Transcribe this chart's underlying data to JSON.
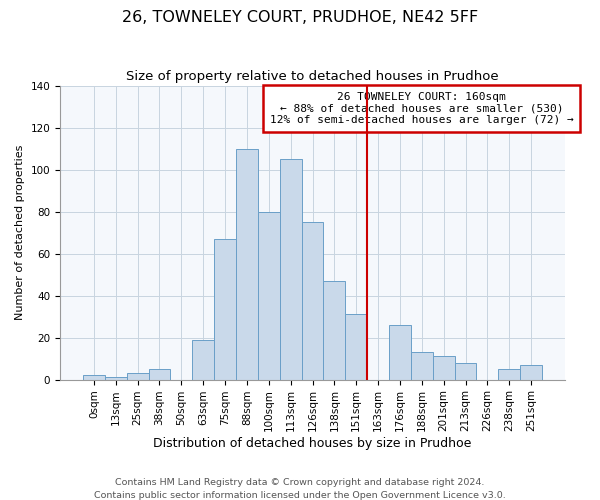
{
  "title": "26, TOWNELEY COURT, PRUDHOE, NE42 5FF",
  "subtitle": "Size of property relative to detached houses in Prudhoe",
  "xlabel": "Distribution of detached houses by size in Prudhoe",
  "ylabel": "Number of detached properties",
  "bar_labels": [
    "0sqm",
    "13sqm",
    "25sqm",
    "38sqm",
    "50sqm",
    "63sqm",
    "75sqm",
    "88sqm",
    "100sqm",
    "113sqm",
    "126sqm",
    "138sqm",
    "151sqm",
    "163sqm",
    "176sqm",
    "188sqm",
    "201sqm",
    "213sqm",
    "226sqm",
    "238sqm",
    "251sqm"
  ],
  "bar_values": [
    2,
    1,
    3,
    5,
    0,
    19,
    67,
    110,
    80,
    105,
    75,
    47,
    31,
    0,
    26,
    13,
    11,
    8,
    0,
    5,
    7
  ],
  "bar_color": "#c9d9ea",
  "bar_edge_color": "#6a9fc8",
  "vline_color": "#cc0000",
  "annotation_title": "26 TOWNELEY COURT: 160sqm",
  "annotation_line1": "← 88% of detached houses are smaller (530)",
  "annotation_line2": "12% of semi-detached houses are larger (72) →",
  "annotation_box_color": "#ffffff",
  "annotation_box_edge": "#cc0000",
  "footer1": "Contains HM Land Registry data © Crown copyright and database right 2024.",
  "footer2": "Contains public sector information licensed under the Open Government Licence v3.0.",
  "ylim": [
    0,
    140
  ],
  "title_fontsize": 11.5,
  "subtitle_fontsize": 9.5,
  "xlabel_fontsize": 9,
  "ylabel_fontsize": 8,
  "tick_fontsize": 7.5,
  "annotation_fontsize": 8,
  "footer_fontsize": 6.8
}
